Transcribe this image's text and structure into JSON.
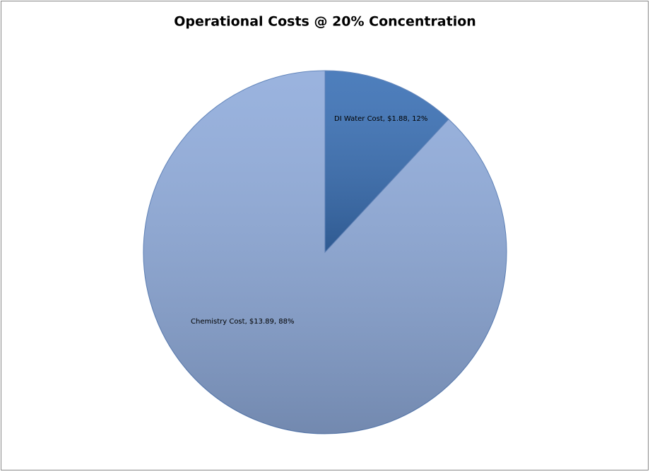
{
  "chart_data": {
    "type": "pie",
    "title": "Operational Costs @ 20% Concentration",
    "categories": [
      "DI Water Cost",
      "Chemistry Cost"
    ],
    "values": [
      1.88,
      13.89
    ],
    "value_labels": [
      "DI Water Cost, $1.88, 12%",
      "Chemistry Cost, $13.89, 88%"
    ],
    "colors": [
      "#3a70b5",
      "#8fabdb"
    ]
  }
}
